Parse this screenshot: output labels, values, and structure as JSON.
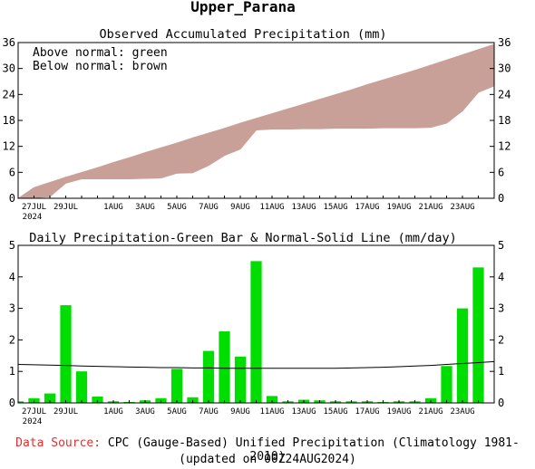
{
  "title": "Upper_Parana",
  "colors": {
    "above_normal": "#2ec82e",
    "below_normal": "#c8a098",
    "bars": "#00dd00",
    "normal_line": "#000000",
    "source_label": "#e03030"
  },
  "chart_data": [
    {
      "type": "area",
      "title": "Observed Accumulated Precipitation (mm)",
      "legend": [
        "Above normal: green",
        "Below normal: brown"
      ],
      "legend_position": "top-left",
      "ylim": [
        0,
        36
      ],
      "yticks": [
        0,
        6,
        12,
        18,
        24,
        30,
        36
      ],
      "xlim": [
        0,
        30
      ],
      "x_ticks": [
        {
          "day": 1,
          "label": "27JUL",
          "sub": "2024"
        },
        {
          "day": 3,
          "label": "29JUL"
        },
        {
          "day": 6,
          "label": "1AUG"
        },
        {
          "day": 8,
          "label": "3AUG"
        },
        {
          "day": 10,
          "label": "5AUG"
        },
        {
          "day": 12,
          "label": "7AUG"
        },
        {
          "day": 14,
          "label": "9AUG"
        },
        {
          "day": 16,
          "label": "11AUG"
        },
        {
          "day": 18,
          "label": "13AUG"
        },
        {
          "day": 20,
          "label": "15AUG"
        },
        {
          "day": 22,
          "label": "17AUG"
        },
        {
          "day": 24,
          "label": "19AUG"
        },
        {
          "day": 26,
          "label": "21AUG"
        },
        {
          "day": 28,
          "label": "23AUG"
        }
      ],
      "x": [
        0,
        1,
        2,
        3,
        4,
        5,
        6,
        7,
        8,
        9,
        10,
        11,
        12,
        13,
        14,
        15,
        16,
        17,
        18,
        19,
        20,
        21,
        22,
        23,
        24,
        25,
        26,
        27,
        28,
        29,
        30
      ],
      "series": [
        {
          "values": [
            0,
            0.1,
            0.4,
            3.5,
            4.5,
            4.5,
            4.5,
            4.5,
            4.6,
            4.7,
            5.8,
            5.9,
            7.6,
            9.9,
            11.4,
            15.8,
            16.0,
            16.0,
            16.1,
            16.1,
            16.2,
            16.2,
            16.2,
            16.3,
            16.3,
            16.3,
            16.4,
            17.4,
            20.2,
            24.5,
            26.0
          ]
        },
        {
          "values": [
            0,
            2.5,
            3.7,
            4.9,
            6.0,
            7.1,
            8.3,
            9.4,
            10.6,
            11.7,
            12.8,
            14.0,
            15.1,
            16.2,
            17.4,
            18.5,
            19.6,
            20.7,
            21.8,
            22.9,
            24.0,
            25.1,
            26.3,
            27.4,
            28.5,
            29.6,
            30.8,
            32.0,
            33.2,
            34.4,
            35.6
          ]
        }
      ]
    },
    {
      "type": "bar",
      "title": "Daily Precipitation-Green Bar & Normal-Solid Line (mm/day)",
      "ylim": [
        0,
        5
      ],
      "yticks": [
        0,
        1,
        2,
        3,
        4,
        5
      ],
      "xlim": [
        0,
        30
      ],
      "x": [
        0,
        1,
        2,
        3,
        4,
        5,
        6,
        7,
        8,
        9,
        10,
        11,
        12,
        13,
        14,
        15,
        16,
        17,
        18,
        19,
        20,
        21,
        22,
        23,
        24,
        25,
        26,
        27,
        28,
        29,
        30
      ],
      "series": [
        {
          "values": [
            0.05,
            0.15,
            0.3,
            3.1,
            1.0,
            0.2,
            0.05,
            0.03,
            0.08,
            0.15,
            1.08,
            0.18,
            1.65,
            2.27,
            1.47,
            4.5,
            0.22,
            0.05,
            0.1,
            0.08,
            0.05,
            0.05,
            0.05,
            0.03,
            0.05,
            0.05,
            0.15,
            1.17,
            3.0,
            4.3,
            0.0
          ]
        },
        {
          "values": [
            1.22,
            1.21,
            1.2,
            1.19,
            1.17,
            1.16,
            1.15,
            1.14,
            1.13,
            1.12,
            1.12,
            1.11,
            1.11,
            1.1,
            1.1,
            1.1,
            1.1,
            1.1,
            1.1,
            1.1,
            1.1,
            1.11,
            1.12,
            1.13,
            1.15,
            1.17,
            1.19,
            1.22,
            1.25,
            1.28,
            1.31
          ]
        }
      ]
    }
  ],
  "footer": {
    "source_label": "Data Source:",
    "source_text": "CPC (Gauge-Based) Unified Precipitation (Climatology 1981-2010)",
    "updated": "(updated on 00Z24AUG2024)"
  }
}
